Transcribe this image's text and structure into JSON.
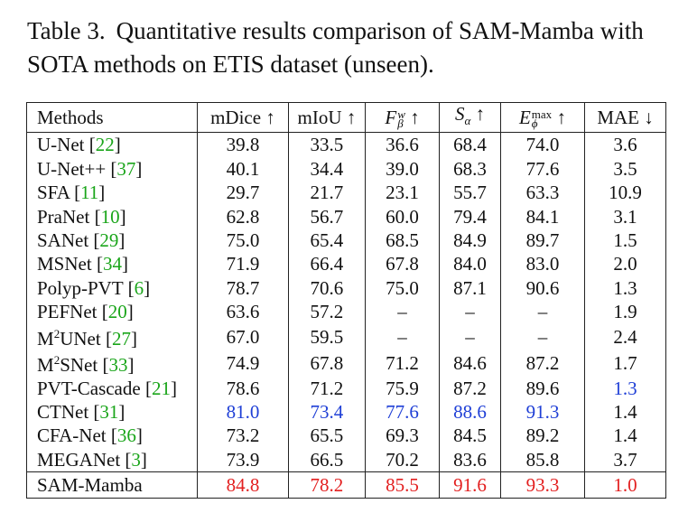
{
  "caption": {
    "label": "Table 3.",
    "text": "Quantitative results comparison of SAM-Mamba with SOTA methods on ETIS dataset (unseen)."
  },
  "headers": {
    "methods": "Methods",
    "mdice": "mDice ↑",
    "miou": "mIoU ↑",
    "fw_base": "F",
    "fw_sup": "w",
    "fw_sub": "β",
    "sa_base": "S",
    "sa_sub": "α",
    "em_base": "E",
    "em_sup": "max",
    "em_sub": "ϕ",
    "arrow_up": "↑",
    "mae": "MAE ↓"
  },
  "rows": [
    {
      "name": "U-Net",
      "ref": "22",
      "values": [
        "39.8",
        "33.5",
        "36.6",
        "68.4",
        "74.0",
        "3.6"
      ]
    },
    {
      "name": "U-Net++",
      "ref": "37",
      "values": [
        "40.1",
        "34.4",
        "39.0",
        "68.3",
        "77.6",
        "3.5"
      ]
    },
    {
      "name": "SFA",
      "ref": "11",
      "values": [
        "29.7",
        "21.7",
        "23.1",
        "55.7",
        "63.3",
        "10.9"
      ]
    },
    {
      "name": "PraNet",
      "ref": "10",
      "values": [
        "62.8",
        "56.7",
        "60.0",
        "79.4",
        "84.1",
        "3.1"
      ]
    },
    {
      "name": "SANet",
      "ref": "29",
      "values": [
        "75.0",
        "65.4",
        "68.5",
        "84.9",
        "89.7",
        "1.5"
      ]
    },
    {
      "name": "MSNet",
      "ref": "34",
      "values": [
        "71.9",
        "66.4",
        "67.8",
        "84.0",
        "83.0",
        "2.0"
      ]
    },
    {
      "name": "Polyp-PVT",
      "ref": "6",
      "values": [
        "78.7",
        "70.6",
        "75.0",
        "87.1",
        "90.6",
        "1.3"
      ]
    },
    {
      "name": "PEFNet",
      "ref": "20",
      "values": [
        "63.6",
        "57.2",
        "–",
        "–",
        "–",
        "1.9"
      ]
    },
    {
      "name": "M",
      "sup": "2",
      "name_rest": "UNet",
      "ref": "27",
      "values": [
        "67.0",
        "59.5",
        "–",
        "–",
        "–",
        "2.4"
      ]
    },
    {
      "name": "M",
      "sup": "2",
      "name_rest": "SNet",
      "ref": "33",
      "values": [
        "74.9",
        "67.8",
        "71.2",
        "84.6",
        "87.2",
        "1.7"
      ]
    },
    {
      "name": "PVT-Cascade",
      "ref": "21",
      "values": [
        "78.6",
        "71.2",
        "75.9",
        "87.2",
        "89.6",
        "1.3"
      ]
    },
    {
      "name": "CTNet",
      "ref": "31",
      "values": [
        "81.0",
        "73.4",
        "77.6",
        "88.6",
        "91.3",
        "1.4"
      ]
    },
    {
      "name": "CFA-Net",
      "ref": "36",
      "values": [
        "73.2",
        "65.5",
        "69.3",
        "84.5",
        "89.2",
        "1.4"
      ]
    },
    {
      "name": "MEGANet",
      "ref": "3",
      "values": [
        "73.9",
        "66.5",
        "70.2",
        "83.6",
        "85.8",
        "3.7"
      ]
    }
  ],
  "final_row": {
    "name": "SAM-Mamba",
    "values": [
      "84.8",
      "78.2",
      "85.5",
      "91.6",
      "93.3",
      "1.0"
    ]
  },
  "colors": {
    "second_best": "#1f3fd6",
    "best": "#e32020",
    "citation": "#1aa51a"
  }
}
